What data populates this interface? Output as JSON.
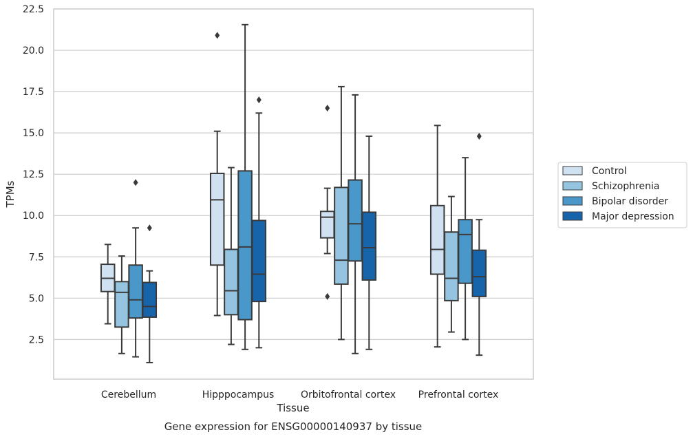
{
  "chart_data": {
    "type": "box",
    "title": "Gene expression for ENSG00000140937 by tissue",
    "xlabel": "Tissue",
    "ylabel": "TPMs",
    "ylim": [
      0.1,
      22.5
    ],
    "yticks": [
      2.5,
      5.0,
      7.5,
      10.0,
      12.5,
      15.0,
      17.5,
      20.0,
      22.5
    ],
    "grid": true,
    "legend_position": "right",
    "categories": [
      "Cerebellum",
      "Hipppocampus",
      "Orbitofrontal cortex",
      "Prefrontal cortex"
    ],
    "series": [
      {
        "name": "Control",
        "color": "#d0e1f2",
        "boxes": [
          {
            "whisker_low": 3.45,
            "q1": 5.4,
            "median": 6.2,
            "q3": 7.05,
            "whisker_high": 8.25,
            "outliers": []
          },
          {
            "whisker_low": 3.95,
            "q1": 7.0,
            "median": 10.95,
            "q3": 12.55,
            "whisker_high": 15.1,
            "outliers": [
              20.9
            ]
          },
          {
            "whisker_low": 7.7,
            "q1": 8.65,
            "median": 9.9,
            "q3": 10.25,
            "whisker_high": 11.65,
            "outliers": [
              5.1,
              16.5
            ]
          },
          {
            "whisker_low": 2.05,
            "q1": 6.45,
            "median": 7.95,
            "q3": 10.6,
            "whisker_high": 15.45,
            "outliers": []
          }
        ]
      },
      {
        "name": "Schizophrenia",
        "color": "#94c4df",
        "boxes": [
          {
            "whisker_low": 1.65,
            "q1": 3.25,
            "median": 5.35,
            "q3": 6.0,
            "whisker_high": 7.55,
            "outliers": []
          },
          {
            "whisker_low": 2.2,
            "q1": 4.0,
            "median": 5.45,
            "q3": 7.95,
            "whisker_high": 12.9,
            "outliers": []
          },
          {
            "whisker_low": 2.5,
            "q1": 5.85,
            "median": 7.3,
            "q3": 11.7,
            "whisker_high": 17.8,
            "outliers": []
          },
          {
            "whisker_low": 2.95,
            "q1": 4.85,
            "median": 6.2,
            "q3": 9.0,
            "whisker_high": 11.15,
            "outliers": []
          }
        ]
      },
      {
        "name": "Bipolar disorder",
        "color": "#4a98c9",
        "boxes": [
          {
            "whisker_low": 1.45,
            "q1": 3.8,
            "median": 4.9,
            "q3": 7.0,
            "whisker_high": 9.25,
            "outliers": [
              12.0
            ]
          },
          {
            "whisker_low": 1.9,
            "q1": 3.7,
            "median": 8.1,
            "q3": 12.7,
            "whisker_high": 21.55,
            "outliers": []
          },
          {
            "whisker_low": 1.65,
            "q1": 7.25,
            "median": 9.5,
            "q3": 12.15,
            "whisker_high": 17.3,
            "outliers": []
          },
          {
            "whisker_low": 2.5,
            "q1": 5.9,
            "median": 8.85,
            "q3": 9.75,
            "whisker_high": 13.5,
            "outliers": []
          }
        ]
      },
      {
        "name": "Major depression",
        "color": "#1764ab",
        "boxes": [
          {
            "whisker_low": 1.1,
            "q1": 3.85,
            "median": 4.5,
            "q3": 5.95,
            "whisker_high": 6.65,
            "outliers": [
              9.25
            ]
          },
          {
            "whisker_low": 2.0,
            "q1": 4.8,
            "median": 6.45,
            "q3": 9.7,
            "whisker_high": 16.2,
            "outliers": [
              17.0
            ]
          },
          {
            "whisker_low": 1.9,
            "q1": 6.1,
            "median": 8.05,
            "q3": 10.2,
            "whisker_high": 14.8,
            "outliers": []
          },
          {
            "whisker_low": 1.55,
            "q1": 5.1,
            "median": 6.3,
            "q3": 7.9,
            "whisker_high": 9.75,
            "outliers": [
              14.8
            ]
          }
        ]
      }
    ]
  }
}
